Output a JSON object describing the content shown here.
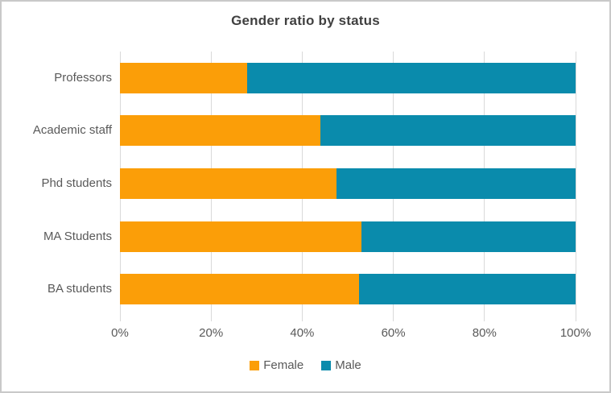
{
  "chart": {
    "title": "Gender ratio by status",
    "colors": {
      "female": "#FB9E08",
      "male": "#0A8BAC",
      "gridline": "#D9D9D9",
      "axis_text": "#595959",
      "title_text": "#404040",
      "frame_border": "#C9C9C9",
      "background": "#FFFFFF"
    }
  },
  "chart_data": {
    "type": "bar",
    "orientation": "horizontal",
    "stacked": true,
    "title": "Gender ratio by status",
    "categories": [
      "Professors",
      "Academic staff",
      "Phd students",
      "MA Students",
      "BA students"
    ],
    "series": [
      {
        "name": "Female",
        "color": "#FB9E08",
        "values": [
          28,
          44,
          47.5,
          53,
          52.5
        ]
      },
      {
        "name": "Male",
        "color": "#0A8BAC",
        "values": [
          72,
          56,
          52.5,
          47,
          47.5
        ]
      }
    ],
    "xlabel": "",
    "ylabel": "",
    "xlim": [
      0,
      100
    ],
    "x_ticks": [
      "0%",
      "20%",
      "40%",
      "60%",
      "80%",
      "100%"
    ],
    "x_tick_values": [
      0,
      20,
      40,
      60,
      80,
      100
    ],
    "grid": true,
    "legend_position": "bottom"
  }
}
